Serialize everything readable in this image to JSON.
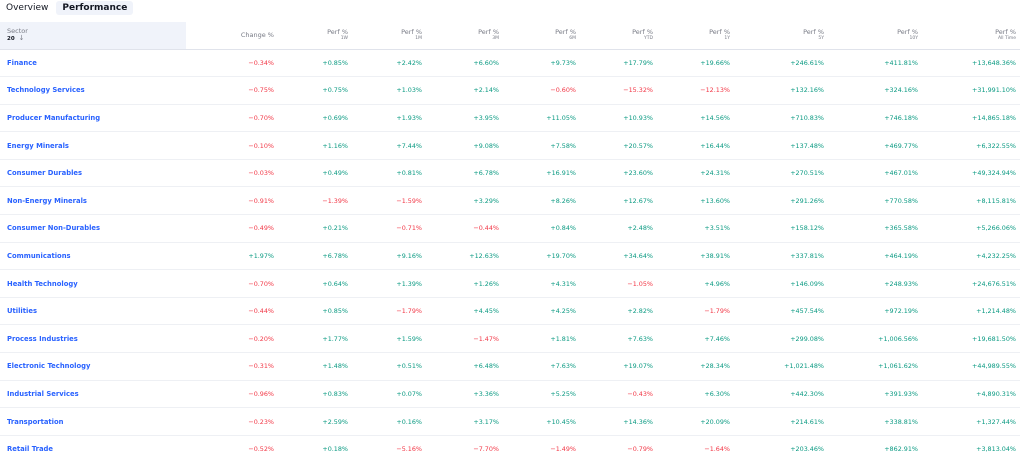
{
  "tabs": [
    "Overview",
    "Performance"
  ],
  "header": {
    "sector": "Sector",
    "count": "20",
    "sort_arrow": "↓",
    "change": "Change %",
    "perf": "Perf %",
    "periods": [
      "1W",
      "1M",
      "3M",
      "6M",
      "YTD",
      "1Y",
      "5Y",
      "10Y",
      "All Time"
    ]
  },
  "rows": [
    {
      "name": "Finance",
      "vals": [
        "−0.34%",
        "+0.85%",
        "+2.42%",
        "+6.60%",
        "+9.73%",
        "+17.79%",
        "+19.66%",
        "+246.61%",
        "+411.81%",
        "+13,648.36%"
      ]
    },
    {
      "name": "Technology Services",
      "vals": [
        "−0.75%",
        "+0.75%",
        "+1.03%",
        "+2.14%",
        "−0.60%",
        "−15.32%",
        "−12.13%",
        "+132.16%",
        "+324.16%",
        "+31,991.10%"
      ]
    },
    {
      "name": "Producer Manufacturing",
      "vals": [
        "−0.70%",
        "+0.69%",
        "+1.93%",
        "+3.95%",
        "+11.05%",
        "+10.93%",
        "+14.56%",
        "+710.83%",
        "+746.18%",
        "+14,865.18%"
      ]
    },
    {
      "name": "Energy Minerals",
      "vals": [
        "−0.10%",
        "+1.16%",
        "+7.44%",
        "+9.08%",
        "+7.58%",
        "+20.57%",
        "+16.44%",
        "+137.48%",
        "+469.77%",
        "+6,322.55%"
      ]
    },
    {
      "name": "Consumer Durables",
      "vals": [
        "−0.03%",
        "+0.49%",
        "+0.81%",
        "+6.78%",
        "+16.91%",
        "+23.60%",
        "+24.31%",
        "+270.51%",
        "+467.01%",
        "+49,324.94%"
      ]
    },
    {
      "name": "Non-Energy Minerals",
      "vals": [
        "−0.91%",
        "−1.39%",
        "−1.59%",
        "+3.29%",
        "+8.26%",
        "+12.67%",
        "+13.60%",
        "+291.26%",
        "+770.58%",
        "+8,115.81%"
      ]
    },
    {
      "name": "Consumer Non-Durables",
      "vals": [
        "−0.49%",
        "+0.21%",
        "−0.71%",
        "−0.44%",
        "+0.84%",
        "+2.48%",
        "+3.51%",
        "+158.12%",
        "+365.58%",
        "+5,266.06%"
      ]
    },
    {
      "name": "Communications",
      "vals": [
        "+1.97%",
        "+6.78%",
        "+9.16%",
        "+12.63%",
        "+19.70%",
        "+34.64%",
        "+38.91%",
        "+337.81%",
        "+464.19%",
        "+4,232.25%"
      ]
    },
    {
      "name": "Health Technology",
      "vals": [
        "−0.70%",
        "+0.64%",
        "+1.39%",
        "+1.26%",
        "+4.31%",
        "−1.05%",
        "+4.96%",
        "+146.09%",
        "+248.93%",
        "+24,676.51%"
      ]
    },
    {
      "name": "Utilities",
      "vals": [
        "−0.44%",
        "+0.85%",
        "−1.79%",
        "+4.45%",
        "+4.25%",
        "+2.82%",
        "−1.79%",
        "+457.54%",
        "+972.19%",
        "+1,214.48%"
      ]
    },
    {
      "name": "Process Industries",
      "vals": [
        "−0.20%",
        "+1.77%",
        "+1.59%",
        "−1.47%",
        "+1.81%",
        "+7.63%",
        "+7.46%",
        "+299.08%",
        "+1,006.56%",
        "+19,681.50%"
      ]
    },
    {
      "name": "Electronic Technology",
      "vals": [
        "−0.31%",
        "+1.48%",
        "+0.51%",
        "+6.48%",
        "+7.63%",
        "+19.07%",
        "+28.34%",
        "+1,021.48%",
        "+1,061.62%",
        "+44,989.55%"
      ]
    },
    {
      "name": "Industrial Services",
      "vals": [
        "−0.96%",
        "+0.83%",
        "+0.07%",
        "+3.36%",
        "+5.25%",
        "−0.43%",
        "+6.30%",
        "+442.30%",
        "+391.93%",
        "+4,890.31%"
      ]
    },
    {
      "name": "Transportation",
      "vals": [
        "−0.23%",
        "+2.59%",
        "+0.16%",
        "+3.17%",
        "+10.45%",
        "+14.36%",
        "+20.09%",
        "+214.61%",
        "+338.81%",
        "+1,327.44%"
      ]
    },
    {
      "name": "Retail Trade",
      "vals": [
        "−0.52%",
        "+0.18%",
        "−5.16%",
        "−7.70%",
        "−1.49%",
        "−0.79%",
        "−1.64%",
        "+203.46%",
        "+862.91%",
        "+3,813.04%"
      ]
    }
  ],
  "colors": {
    "positive": "#089981",
    "negative": "#f23645",
    "link": "#2962ff"
  }
}
